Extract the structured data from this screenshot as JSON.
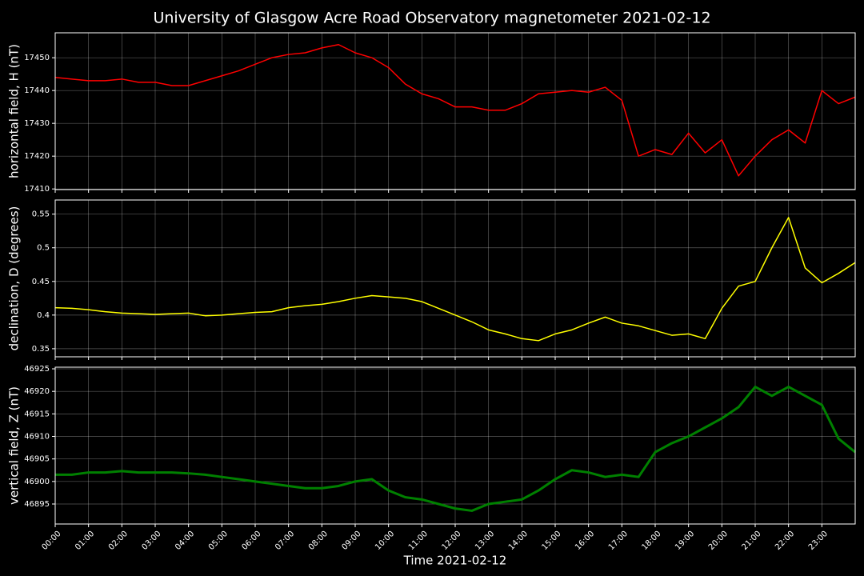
{
  "title": "University of Glasgow Acre Road Observatory magnetometer 2021-02-12",
  "chart_data": [
    {
      "type": "line",
      "ylabel": "horizontal field, H (nT)",
      "grid": true,
      "x": [
        "00:00",
        "00:30",
        "01:00",
        "01:30",
        "02:00",
        "02:30",
        "03:00",
        "03:30",
        "04:00",
        "04:30",
        "05:00",
        "05:30",
        "06:00",
        "06:30",
        "07:00",
        "07:30",
        "08:00",
        "08:30",
        "09:00",
        "09:30",
        "10:00",
        "10:30",
        "11:00",
        "11:30",
        "12:00",
        "12:30",
        "13:00",
        "13:30",
        "14:00",
        "14:30",
        "15:00",
        "15:30",
        "16:00",
        "16:30",
        "17:00",
        "17:30",
        "18:00",
        "18:30",
        "19:00",
        "19:30",
        "20:00",
        "20:30",
        "21:00",
        "21:30",
        "22:00",
        "22:30",
        "23:00",
        "23:30",
        "24:00"
      ],
      "xlim": [
        "00:00",
        "24:00"
      ],
      "xticks": [
        "00:00",
        "01:00",
        "02:00",
        "03:00",
        "04:00",
        "05:00",
        "06:00",
        "07:00",
        "08:00",
        "09:00",
        "10:00",
        "11:00",
        "12:00",
        "13:00",
        "14:00",
        "15:00",
        "16:00",
        "17:00",
        "18:00",
        "19:00",
        "20:00",
        "21:00",
        "22:00",
        "23:00"
      ],
      "ylim": [
        17409.8,
        17457.6
      ],
      "yticks": [
        17410,
        17420,
        17430,
        17440,
        17450
      ],
      "series": [
        {
          "color": "#ff0000",
          "values": [
            17444,
            17443.5,
            17443,
            17443,
            17443.5,
            17442.5,
            17442.5,
            17441.5,
            17441.5,
            17443,
            17444.5,
            17446,
            17448,
            17450,
            17451,
            17451.5,
            17453,
            17454,
            17451.5,
            17450,
            17447,
            17442,
            17439,
            17437.5,
            17435,
            17435,
            17434,
            17434,
            17436,
            17439,
            17439.5,
            17440,
            17439.5,
            17441,
            17437,
            17420,
            17422,
            17420.5,
            17427,
            17421,
            17425,
            17414,
            17420,
            17425,
            17428,
            17424,
            17440,
            17436,
            17438
          ]
        }
      ]
    },
    {
      "type": "line",
      "ylabel": "declination, D (degrees)",
      "grid": true,
      "x": [
        "00:00",
        "00:30",
        "01:00",
        "01:30",
        "02:00",
        "02:30",
        "03:00",
        "03:30",
        "04:00",
        "04:30",
        "05:00",
        "05:30",
        "06:00",
        "06:30",
        "07:00",
        "07:30",
        "08:00",
        "08:30",
        "09:00",
        "09:30",
        "10:00",
        "10:30",
        "11:00",
        "11:30",
        "12:00",
        "12:30",
        "13:00",
        "13:30",
        "14:00",
        "14:30",
        "15:00",
        "15:30",
        "16:00",
        "16:30",
        "17:00",
        "17:30",
        "18:00",
        "18:30",
        "19:00",
        "19:30",
        "20:00",
        "20:30",
        "21:00",
        "21:30",
        "22:00",
        "22:30",
        "23:00",
        "23:30",
        "24:00"
      ],
      "xlim": [
        "00:00",
        "24:00"
      ],
      "xticks": [
        "00:00",
        "01:00",
        "02:00",
        "03:00",
        "04:00",
        "05:00",
        "06:00",
        "07:00",
        "08:00",
        "09:00",
        "10:00",
        "11:00",
        "12:00",
        "13:00",
        "14:00",
        "15:00",
        "16:00",
        "17:00",
        "18:00",
        "19:00",
        "20:00",
        "21:00",
        "22:00",
        "23:00"
      ],
      "ylim": [
        0.338,
        0.571
      ],
      "yticks": [
        0.35,
        0.4,
        0.45,
        0.5,
        0.55
      ],
      "series": [
        {
          "color": "#ffff00",
          "values": [
            0.411,
            0.41,
            0.408,
            0.405,
            0.403,
            0.402,
            0.401,
            0.402,
            0.403,
            0.399,
            0.4,
            0.402,
            0.404,
            0.405,
            0.411,
            0.414,
            0.416,
            0.42,
            0.425,
            0.429,
            0.427,
            0.425,
            0.42,
            0.41,
            0.4,
            0.39,
            0.378,
            0.372,
            0.365,
            0.362,
            0.372,
            0.378,
            0.388,
            0.397,
            0.388,
            0.384,
            0.377,
            0.37,
            0.372,
            0.365,
            0.41,
            0.443,
            0.45,
            0.5,
            0.545,
            0.47,
            0.448,
            0.462,
            0.478
          ]
        }
      ]
    },
    {
      "type": "line",
      "ylabel": "vertical field, Z (nT)",
      "xlabel": "Time 2021-02-12",
      "grid": true,
      "x": [
        "00:00",
        "00:30",
        "01:00",
        "01:30",
        "02:00",
        "02:30",
        "03:00",
        "03:30",
        "04:00",
        "04:30",
        "05:00",
        "05:30",
        "06:00",
        "06:30",
        "07:00",
        "07:30",
        "08:00",
        "08:30",
        "09:00",
        "09:30",
        "10:00",
        "10:30",
        "11:00",
        "11:30",
        "12:00",
        "12:30",
        "13:00",
        "13:30",
        "14:00",
        "14:30",
        "15:00",
        "15:30",
        "16:00",
        "16:30",
        "17:00",
        "17:30",
        "18:00",
        "18:30",
        "19:00",
        "19:30",
        "20:00",
        "20:30",
        "21:00",
        "21:30",
        "22:00",
        "22:30",
        "23:00",
        "23:30",
        "24:00"
      ],
      "xlim": [
        "00:00",
        "24:00"
      ],
      "xticks": [
        "00:00",
        "01:00",
        "02:00",
        "03:00",
        "04:00",
        "05:00",
        "06:00",
        "07:00",
        "08:00",
        "09:00",
        "10:00",
        "11:00",
        "12:00",
        "13:00",
        "14:00",
        "15:00",
        "16:00",
        "17:00",
        "18:00",
        "19:00",
        "20:00",
        "21:00",
        "22:00",
        "23:00"
      ],
      "ylim": [
        46890.56,
        46925.36
      ],
      "yticks": [
        46895,
        46900,
        46905,
        46910,
        46915,
        46920,
        46925
      ],
      "series": [
        {
          "color": "#008000",
          "values": [
            46901.5,
            46901.5,
            46902,
            46902,
            46902.3,
            46902,
            46902,
            46902,
            46901.8,
            46901.5,
            46901,
            46900.5,
            46900,
            46899.5,
            46899,
            46898.5,
            46898.5,
            46899,
            46900,
            46900.5,
            46898,
            46896.5,
            46896,
            46895,
            46894,
            46893.5,
            46895,
            46895.5,
            46896,
            46898,
            46900.5,
            46902.5,
            46902,
            46901,
            46901.5,
            46901,
            46906.5,
            46908.5,
            46910,
            46912,
            46914,
            46916.5,
            46921,
            46919,
            46921,
            46919,
            46917,
            46909.5,
            46906.5
          ]
        }
      ]
    }
  ]
}
